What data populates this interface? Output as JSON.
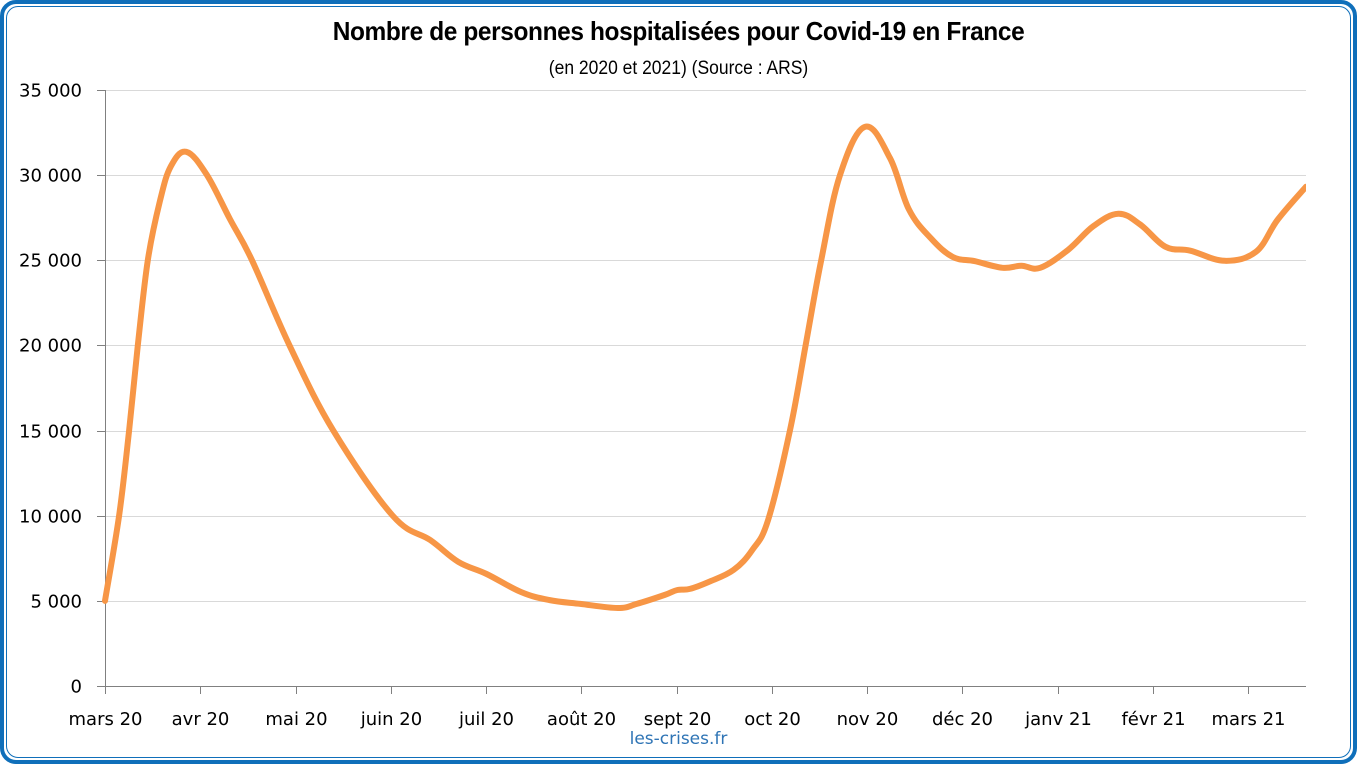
{
  "chart_data": {
    "type": "line",
    "title": "Nombre de personnes hospitalisées pour Covid-19 en France",
    "subtitle": "(en 2020 et 2021) (Source : ARS)",
    "xlabel": "",
    "ylabel": "",
    "x_unit": "days since 2020-03-01",
    "xlim": [
      0,
      384
    ],
    "ylim": [
      0,
      35000
    ],
    "grid": true,
    "legend": "none",
    "yticks": [
      0,
      5000,
      10000,
      15000,
      20000,
      25000,
      30000,
      35000
    ],
    "ytick_labels": [
      "0",
      "5 000",
      "10 000",
      "15 000",
      "20 000",
      "25 000",
      "30 000",
      "35 000"
    ],
    "xticks": [
      0,
      31,
      61,
      92,
      122,
      153,
      184,
      214,
      245,
      275,
      306,
      337,
      365
    ],
    "xtick_labels": [
      "mars 20",
      "avr 20",
      "mai 20",
      "juin 20",
      "juil 20",
      "août 20",
      "sept 20",
      "oct 20",
      "nov 20",
      "déc 20",
      "janv 21",
      "févr 21",
      "mars 21"
    ],
    "series": [
      {
        "name": "Personnes hospitalisées",
        "color": "#f79646",
        "x": [
          0,
          4.5,
          7.7,
          10.5,
          13.7,
          17.6,
          21,
          26,
          32.6,
          40,
          47,
          59,
          73,
          92,
          104,
          113,
          122,
          133,
          142,
          152,
          164,
          170,
          179,
          183,
          187,
          193,
          201,
          207,
          212,
          219,
          224,
          229,
          235,
          243,
          251,
          257,
          264,
          271,
          278,
          287,
          293,
          299,
          308,
          316,
          324,
          331,
          339,
          347,
          358,
          368,
          375,
          384
        ],
        "y": [
          5000,
          10000,
          15000,
          20000,
          25000,
          28500,
          30500,
          31370,
          30000,
          27400,
          25000,
          20000,
          15000,
          10000,
          8570,
          7290,
          6580,
          5520,
          5050,
          4820,
          4580,
          4820,
          5350,
          5640,
          5700,
          6110,
          6820,
          8000,
          9750,
          15000,
          20000,
          25000,
          30000,
          32840,
          31000,
          28000,
          26300,
          25200,
          24950,
          24560,
          24680,
          24560,
          25620,
          27000,
          27730,
          27100,
          25800,
          25560,
          24970,
          25500,
          27400,
          29320
        ]
      }
    ]
  },
  "footer": {
    "source_site": "les-crises.fr"
  },
  "colors": {
    "frame": "#0f6fba",
    "line": "#f79646",
    "grid": "#d9d9d9",
    "axis": "#808080",
    "watermark": "#2e74b5"
  }
}
